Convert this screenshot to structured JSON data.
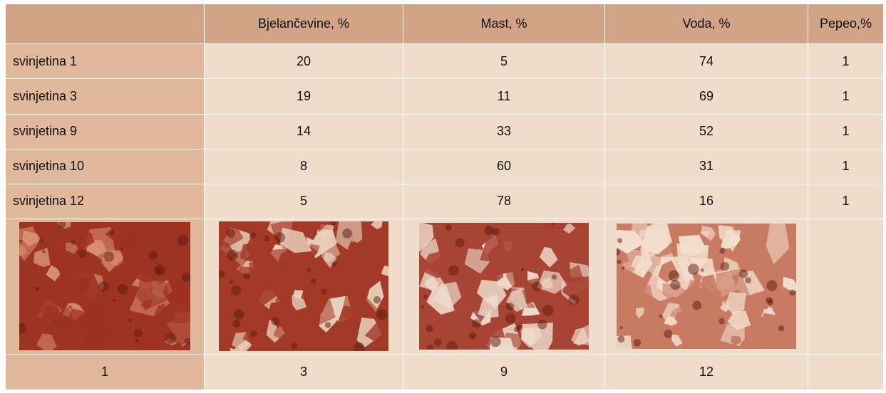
{
  "table": {
    "headers": [
      "",
      "Bjelančevine, %",
      "Mast, %",
      "Voda, %",
      "Pepeo,%"
    ],
    "rows": [
      {
        "label": "svinjetina 1",
        "values": [
          "20",
          "5",
          "74",
          "1"
        ]
      },
      {
        "label": "svinjetina 3",
        "values": [
          "19",
          "11",
          "69",
          "1"
        ]
      },
      {
        "label": "svinjetina 9",
        "values": [
          "14",
          "33",
          "52",
          "1"
        ]
      },
      {
        "label": "svinjetina 10",
        "values": [
          "8",
          "60",
          "31",
          "1"
        ]
      },
      {
        "label": "svinjetina 12",
        "values": [
          "5",
          "78",
          "16",
          "1"
        ]
      }
    ],
    "image_labels": [
      "1",
      "3",
      "9",
      "12"
    ]
  },
  "images": [
    {
      "icon": "minced-meat-lean-photo",
      "base": "#9e3322",
      "fat": "#d88f72"
    },
    {
      "icon": "minced-meat-3-photo",
      "base": "#a33a28",
      "fat": "#ead3c0"
    },
    {
      "icon": "minced-meat-9-photo",
      "base": "#a84434",
      "fat": "#efdccd"
    },
    {
      "icon": "minced-meat-fatty-photo",
      "base": "#c87a62",
      "fat": "#f3dfcd"
    }
  ]
}
